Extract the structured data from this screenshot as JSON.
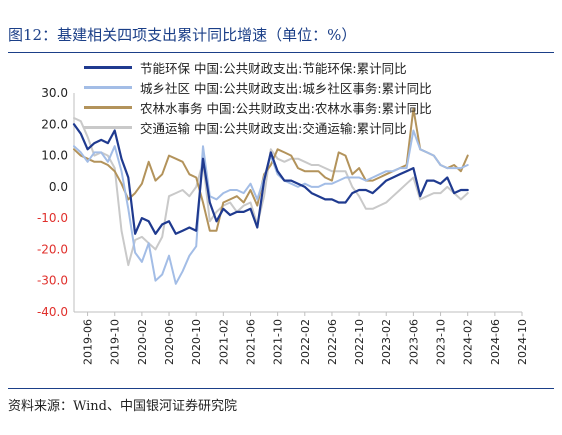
{
  "figure": {
    "title": "图12：基建相关四项支出累计同比增速（单位：%）",
    "source": "资料来源：Wind、中国银河证券研究院"
  },
  "chart_data": {
    "type": "line",
    "ylim": [
      -40,
      30
    ],
    "y_ticks": [
      30,
      20,
      10,
      0,
      -10,
      -20,
      -30,
      -40
    ],
    "y_tick_labels": [
      "30.0",
      "20.0",
      "10.0",
      "0.0",
      "-10.0",
      "-20.0",
      "-30.0",
      "-40.0"
    ],
    "x_tick_labels": [
      "2019-06",
      "2019-10",
      "2020-02",
      "2020-06",
      "2020-10",
      "2021-02",
      "2021-06",
      "2021-10",
      "2022-02",
      "2022-06",
      "2022-10",
      "2023-02",
      "2023-06",
      "2023-10",
      "2024-02",
      "2024-06",
      "2024-10"
    ],
    "x_start": "2019-04",
    "x_end": "2024-10",
    "grid": false,
    "legend_position": "top",
    "series": [
      {
        "name": "节能环保 中国:公共财政支出:节能环保:累计同比",
        "color": "#1f3a8f",
        "values": [
          20,
          17,
          12,
          14,
          15,
          14,
          18,
          9,
          3,
          -15,
          -10,
          -11,
          -15,
          -12,
          -11,
          -15,
          -14,
          -13,
          -14,
          9,
          -5,
          -11,
          -7,
          -9,
          -8,
          -8,
          -7,
          -13,
          2,
          11,
          5,
          2,
          2,
          1,
          0,
          -2,
          -3,
          -4,
          -4,
          -5,
          -5,
          -2,
          -1,
          -1,
          -2,
          0,
          2,
          3,
          4,
          5,
          6,
          -3,
          2,
          2,
          1,
          3,
          -2,
          -1,
          -1
        ]
      },
      {
        "name": "城乡社区 中国:公共财政支出:城乡社区事务:累计同比",
        "color": "#a3bde6",
        "values": [
          13,
          11,
          8,
          11,
          11,
          8,
          13,
          5,
          -7,
          -21,
          -24,
          -18,
          -30,
          -28,
          -22,
          -31,
          -27,
          -22,
          -19,
          13,
          -3,
          -4,
          -2,
          -1,
          -1,
          -2,
          1,
          -4,
          3,
          10,
          4,
          2,
          1,
          0,
          1,
          0,
          0,
          1,
          1,
          2,
          3,
          3,
          3,
          2,
          3,
          4,
          5,
          5,
          6,
          6,
          18,
          12,
          11,
          10,
          7,
          6,
          6,
          6,
          7
        ]
      },
      {
        "name": "农林水事务 中国:公共财政支出:农林水事务:累计同比",
        "color": "#b3935b",
        "values": [
          12,
          10,
          9,
          8,
          8,
          7,
          5,
          1,
          -4,
          -2,
          1,
          8,
          2,
          4,
          10,
          9,
          8,
          4,
          3,
          -5,
          -14,
          -14,
          -5,
          -4,
          -3,
          -5,
          -1,
          -6,
          4,
          7,
          12,
          11,
          10,
          6,
          5,
          5,
          5,
          3,
          2,
          11,
          10,
          4,
          6,
          2,
          2,
          3,
          4,
          5,
          6,
          7,
          25,
          12,
          11,
          10,
          7,
          6,
          7,
          5,
          10
        ]
      },
      {
        "name": "交通运输 中国:公共财政支出:交通运输:累计同比",
        "color": "#c9c9c9",
        "values": [
          22,
          21,
          16,
          10,
          11,
          10,
          6,
          -14,
          -25,
          -17,
          -16,
          -18,
          -20,
          -16,
          -3,
          -2,
          -1,
          -3,
          0,
          8,
          -11,
          -8,
          -6,
          -5,
          -8,
          -6,
          -5,
          -12,
          -3,
          12,
          9,
          8,
          9,
          9,
          8,
          7,
          7,
          6,
          5,
          5,
          5,
          0,
          -3,
          -7,
          -7,
          -6,
          -5,
          -3,
          -1,
          1,
          3,
          -4,
          -3,
          -2,
          -2,
          0,
          -2,
          -4,
          -2
        ]
      }
    ]
  }
}
